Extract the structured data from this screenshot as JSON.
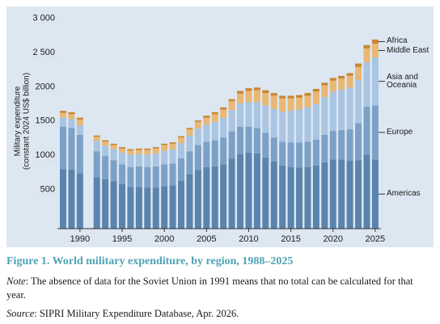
{
  "chart_data": {
    "type": "stacked-bar",
    "title": "Figure 1. World military expenditure, by region, 1988–2025",
    "y_label": [
      "Military expenditure",
      "(constant 2024 US$ billion)"
    ],
    "categories": [
      1988,
      1989,
      1990,
      1991,
      1992,
      1993,
      1994,
      1995,
      1996,
      1997,
      1998,
      1999,
      2000,
      2001,
      2002,
      2003,
      2004,
      2005,
      2006,
      2007,
      2008,
      2009,
      2010,
      2011,
      2012,
      2013,
      2014,
      2015,
      2016,
      2017,
      2018,
      2019,
      2020,
      2021,
      2022,
      2023,
      2024,
      2025
    ],
    "series": [
      {
        "name": "Americas",
        "color": "#5a84ad",
        "values": [
          870,
          860,
          810,
          null,
          750,
          720,
          690,
          650,
          610,
          610,
          600,
          600,
          620,
          630,
          700,
          790,
          860,
          900,
          910,
          940,
          1020,
          1090,
          1110,
          1100,
          1040,
          980,
          920,
          900,
          890,
          900,
          920,
          970,
          1010,
          1010,
          990,
          1000,
          1080,
          1010
        ]
      },
      {
        "name": "Europe",
        "color": "#7ca1c8",
        "values": [
          620,
          610,
          560,
          null,
          380,
          340,
          310,
          290,
          290,
          300,
          300,
          310,
          320,
          320,
          330,
          340,
          360,
          370,
          380,
          390,
          400,
          400,
          380,
          370,
          360,
          350,
          350,
          360,
          370,
          370,
          380,
          400,
          420,
          430,
          460,
          540,
          700,
          790
        ]
      },
      {
        "name": "Asia and Oceania",
        "color": "#a9c5e2",
        "values": [
          130,
          130,
          140,
          null,
          150,
          150,
          160,
          170,
          180,
          180,
          180,
          190,
          200,
          210,
          220,
          230,
          240,
          250,
          270,
          290,
          310,
          340,
          360,
          380,
          400,
          420,
          440,
          460,
          480,
          500,
          520,
          550,
          570,
          590,
          610,
          630,
          650,
          700
        ]
      },
      {
        "name": "Middle East",
        "color": "#e9b875",
        "values": [
          70,
          70,
          80,
          null,
          60,
          60,
          60,
          60,
          60,
          60,
          70,
          70,
          80,
          80,
          80,
          90,
          100,
          100,
          110,
          120,
          130,
          140,
          160,
          170,
          180,
          190,
          190,
          180,
          170,
          170,
          180,
          170,
          160,
          160,
          170,
          190,
          200,
          200
        ]
      },
      {
        "name": "Africa",
        "color": "#c98633",
        "values": [
          30,
          30,
          30,
          null,
          20,
          20,
          20,
          20,
          20,
          20,
          20,
          20,
          20,
          20,
          20,
          20,
          20,
          30,
          30,
          30,
          30,
          40,
          40,
          40,
          40,
          40,
          40,
          40,
          40,
          40,
          40,
          40,
          40,
          40,
          40,
          50,
          50,
          60
        ]
      }
    ],
    "ylim": [
      0,
      3000
    ],
    "yticks": [
      500,
      1000,
      1500,
      2000,
      {
        "value": 2500,
        "label": "2 500"
      },
      {
        "value": 3000,
        "label": "3 000"
      }
    ],
    "xticks": [
      1990,
      1995,
      2000,
      2005,
      2010,
      2015,
      2020,
      2025
    ],
    "grid": false
  },
  "note": {
    "label": "Note",
    "text": ": The absence of data for the Soviet Union in 1991 means that no total can be calculated for that year."
  },
  "source": {
    "label": "Source",
    "text": ": SIPRI Military Expenditure Database, Apr. 2026."
  }
}
